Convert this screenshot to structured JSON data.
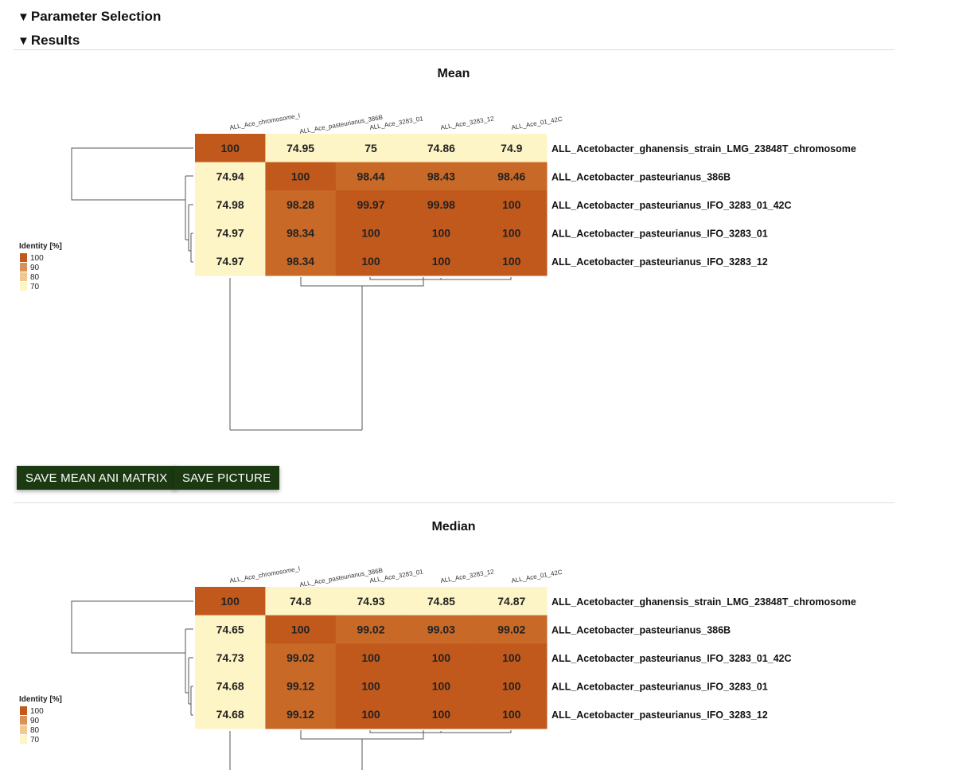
{
  "sections": {
    "parameter_selection": "Parameter Selection",
    "results": "Results",
    "arrow": "▼"
  },
  "buttons": {
    "save_matrix": "SAVE MEAN ANI MATRIX",
    "save_picture": "SAVE PICTURE"
  },
  "colors": {
    "c100": "#c1591c",
    "c98": "#c86927",
    "c90": "#d9915a",
    "c80": "#f0c890",
    "c70": "#fef5c6",
    "button_bg": "#1b3a12"
  },
  "chart_data": [
    {
      "type": "heatmap",
      "title": "Mean",
      "legend_title": "Identity [%]",
      "legend_ticks": [
        "100",
        "90",
        "80",
        "70"
      ],
      "columns": [
        "ALL_Ace_chromosome_I",
        "ALL_Ace_pasteurianus_386B",
        "ALL_Ace_3283_01",
        "ALL_Ace_3283_12",
        "ALL_Ace_01_42C"
      ],
      "rows": [
        "ALL_Acetobacter_ghanensis_strain_LMG_23848T_chromosome",
        "ALL_Acetobacter_pasteurianus_386B",
        "ALL_Acetobacter_pasteurianus_IFO_3283_01_42C",
        "ALL_Acetobacter_pasteurianus_IFO_3283_01",
        "ALL_Acetobacter_pasteurianus_IFO_3283_12"
      ],
      "values": [
        [
          "100",
          "74.95",
          "75",
          "74.86",
          "74.9"
        ],
        [
          "74.94",
          "100",
          "98.44",
          "98.43",
          "98.46"
        ],
        [
          "74.98",
          "98.28",
          "99.97",
          "99.98",
          "100"
        ],
        [
          "74.97",
          "98.34",
          "100",
          "100",
          "100"
        ],
        [
          "74.97",
          "98.34",
          "100",
          "100",
          "100"
        ]
      ]
    },
    {
      "type": "heatmap",
      "title": "Median",
      "legend_title": "Identity [%]",
      "legend_ticks": [
        "100",
        "90",
        "80",
        "70"
      ],
      "columns": [
        "ALL_Ace_chromosome_I",
        "ALL_Ace_pasteurianus_386B",
        "ALL_Ace_3283_01",
        "ALL_Ace_3283_12",
        "ALL_Ace_01_42C"
      ],
      "rows": [
        "ALL_Acetobacter_ghanensis_strain_LMG_23848T_chromosome",
        "ALL_Acetobacter_pasteurianus_386B",
        "ALL_Acetobacter_pasteurianus_IFO_3283_01_42C",
        "ALL_Acetobacter_pasteurianus_IFO_3283_01",
        "ALL_Acetobacter_pasteurianus_IFO_3283_12"
      ],
      "values": [
        [
          "100",
          "74.8",
          "74.93",
          "74.85",
          "74.87"
        ],
        [
          "74.65",
          "100",
          "99.02",
          "99.03",
          "99.02"
        ],
        [
          "74.73",
          "99.02",
          "100",
          "100",
          "100"
        ],
        [
          "74.68",
          "99.12",
          "100",
          "100",
          "100"
        ],
        [
          "74.68",
          "99.12",
          "100",
          "100",
          "100"
        ]
      ]
    }
  ]
}
